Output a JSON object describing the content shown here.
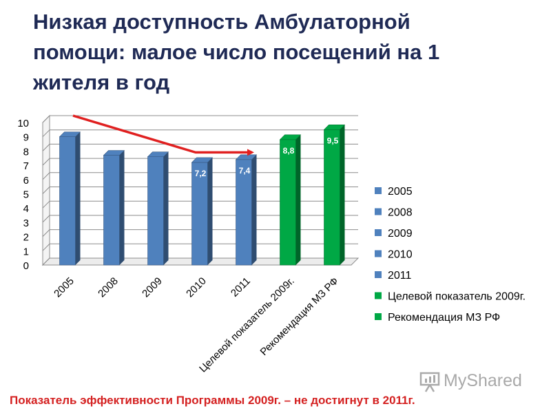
{
  "title_lines": [
    "Низкая доступность Амбулаторной",
    "помощи: малое число посещений на 1",
    "жителя  в год"
  ],
  "footer_text": "Показатель эффективности Программы 2009г.  –  не достигнут в 2011г.",
  "watermark_text": "MyShared",
  "colors": {
    "blue": "#4f81bd",
    "green": "#00a845",
    "arrow": "#e02020",
    "title": "#1f2a55",
    "footer": "#d42020"
  },
  "chart_data": {
    "type": "bar",
    "title": "",
    "xlabel": "",
    "ylabel": "",
    "categories": [
      "2005",
      "2008",
      "2009",
      "2010",
      "2011",
      "Целевой показатель 2009г.",
      "Рекомендация МЗ РФ"
    ],
    "values": [
      9.0,
      7.7,
      7.6,
      7.2,
      7.4,
      8.8,
      9.5
    ],
    "data_labels": [
      "",
      "",
      "",
      "7,2",
      "7,4",
      "8,8",
      "9,5"
    ],
    "bar_colors": [
      "blue",
      "blue",
      "blue",
      "blue",
      "blue",
      "green",
      "green"
    ],
    "ylim": [
      0,
      10
    ],
    "yticks": [
      "0",
      "1",
      "2",
      "3",
      "4",
      "5",
      "6",
      "7",
      "8",
      "9",
      "10"
    ],
    "grid": true,
    "legend_position": "right",
    "legend": [
      {
        "label": "2005",
        "color": "blue"
      },
      {
        "label": "2008",
        "color": "blue"
      },
      {
        "label": "2009",
        "color": "blue"
      },
      {
        "label": "2010",
        "color": "blue"
      },
      {
        "label": "2011",
        "color": "blue"
      },
      {
        "label": "Целевой показатель 2009г.",
        "color": "green"
      },
      {
        "label": "Рекомендация МЗ РФ",
        "color": "green"
      }
    ],
    "trend_arrow": {
      "from_category": "2005",
      "to_category": "2011",
      "from_value": 10.0,
      "to_value": 8.0
    }
  }
}
